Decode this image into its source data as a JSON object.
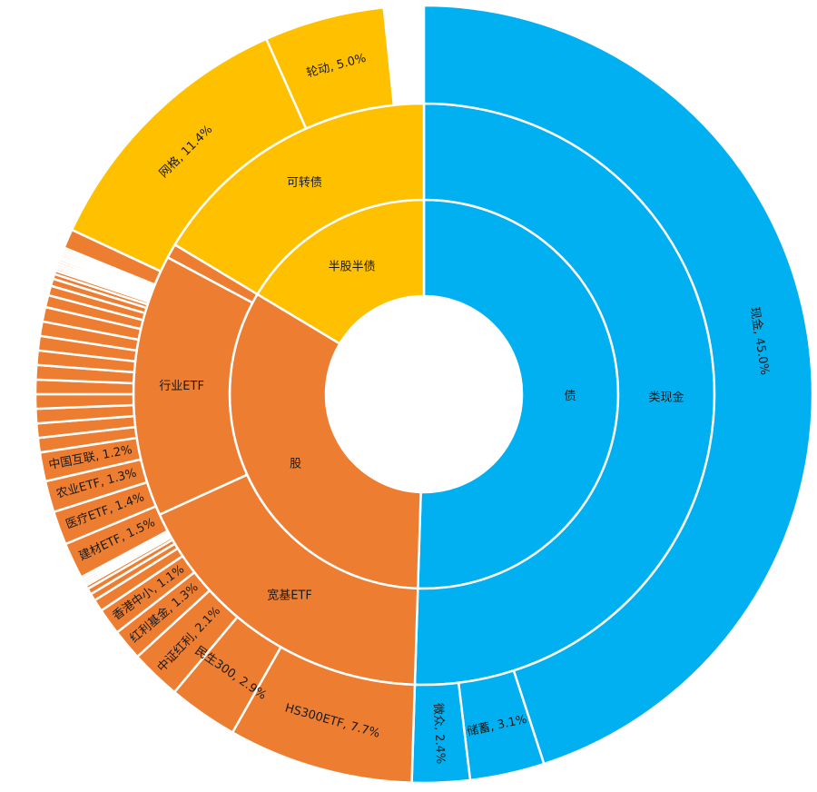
{
  "chart_data": {
    "type": "sunburst",
    "colors": {
      "bond": "#00B0F0",
      "stock": "#ED7D31",
      "mixed": "#FFC000"
    },
    "rings": {
      "inner": [
        {
          "label": "债",
          "value": 50.5,
          "group": "bond"
        },
        {
          "label": "股",
          "value": 33.1,
          "group": "stock"
        },
        {
          "label": "半股半债",
          "value": 16.4,
          "group": "mixed"
        }
      ],
      "middle": [
        {
          "label": "类现金",
          "value": 50.5,
          "group": "bond"
        },
        {
          "label": "宽基ETF",
          "value": 17.7,
          "group": "stock"
        },
        {
          "label": "行业ETF",
          "value": 14.6,
          "group": "stock"
        },
        {
          "label": "",
          "value": 0.8,
          "group": "stock"
        },
        {
          "label": "可转债",
          "value": 16.4,
          "group": "mixed"
        }
      ],
      "outer": [
        {
          "label": "现金, 45.0%",
          "value": 45.0,
          "group": "bond"
        },
        {
          "label": "储蓄, 3.1%",
          "value": 3.1,
          "group": "bond"
        },
        {
          "label": "微众, 2.4%",
          "value": 2.4,
          "group": "bond"
        },
        {
          "label": "HS300ETF, 7.7%",
          "value": 7.7,
          "group": "stock"
        },
        {
          "label": "民生300, 2.9%",
          "value": 2.9,
          "group": "stock"
        },
        {
          "label": "中证红利, 2.1%",
          "value": 2.1,
          "group": "stock"
        },
        {
          "label": "红利基金, 1.3%",
          "value": 1.3,
          "group": "stock"
        },
        {
          "label": "香港中小, 1.1%",
          "value": 1.1,
          "group": "stock"
        },
        {
          "label": "",
          "value": 0.5,
          "group": "stock"
        },
        {
          "label": "",
          "value": 0.3,
          "group": "stock"
        },
        {
          "label": "",
          "value": 0.25,
          "group": "stock"
        },
        {
          "label": "",
          "value": 0.15,
          "group": "stock"
        },
        {
          "label": "",
          "value": 0.1,
          "group": "stock"
        },
        {
          "label": "",
          "value": 0.1,
          "group": "stock"
        },
        {
          "label": "",
          "value": 0.1,
          "group": "stock"
        },
        {
          "label": "",
          "value": 0.1,
          "group": "stock"
        },
        {
          "label": "建材ETF, 1.5%",
          "value": 1.5,
          "group": "stock"
        },
        {
          "label": "医疗ETF, 1.4%",
          "value": 1.4,
          "group": "stock"
        },
        {
          "label": "农业ETF, 1.3%",
          "value": 1.3,
          "group": "stock"
        },
        {
          "label": "中国互联, 1.2%",
          "value": 1.2,
          "group": "stock"
        },
        {
          "label": "",
          "value": 0.6,
          "group": "stock"
        },
        {
          "label": "",
          "value": 0.6,
          "group": "stock"
        },
        {
          "label": "",
          "value": 0.6,
          "group": "stock"
        },
        {
          "label": "",
          "value": 0.6,
          "group": "stock"
        },
        {
          "label": "",
          "value": 0.6,
          "group": "stock"
        },
        {
          "label": "",
          "value": 0.6,
          "group": "stock"
        },
        {
          "label": "",
          "value": 0.6,
          "group": "stock"
        },
        {
          "label": "",
          "value": 0.6,
          "group": "stock"
        },
        {
          "label": "",
          "value": 0.6,
          "group": "stock"
        },
        {
          "label": "",
          "value": 0.6,
          "group": "stock"
        },
        {
          "label": "",
          "value": 0.5,
          "group": "stock"
        },
        {
          "label": "",
          "value": 0.4,
          "group": "stock"
        },
        {
          "label": "",
          "value": 0.3,
          "group": "stock"
        },
        {
          "label": "",
          "value": 0.2,
          "group": "stock"
        },
        {
          "label": "",
          "value": 0.15,
          "group": "stock"
        },
        {
          "label": "",
          "value": 0.1,
          "group": "stock"
        },
        {
          "label": "",
          "value": 0.1,
          "group": "stock"
        },
        {
          "label": "",
          "value": 0.1,
          "group": "stock"
        },
        {
          "label": "",
          "value": 0.1,
          "group": "stock"
        },
        {
          "label": "",
          "value": 0.1,
          "group": "stock"
        },
        {
          "label": "",
          "value": 0.1,
          "group": "stock"
        },
        {
          "label": "",
          "value": 0.1,
          "group": "stock"
        },
        {
          "label": "",
          "value": 0.1,
          "group": "stock"
        },
        {
          "label": "",
          "value": 0.1,
          "group": "stock"
        },
        {
          "label": "",
          "value": 0.1,
          "group": "stock"
        },
        {
          "label": "",
          "value": 0.8,
          "group": "stock"
        },
        {
          "label": "网格, 11.4%",
          "value": 11.4,
          "group": "mixed"
        },
        {
          "label": "轮动, 5.0%",
          "value": 5.0,
          "group": "mixed"
        }
      ]
    }
  }
}
